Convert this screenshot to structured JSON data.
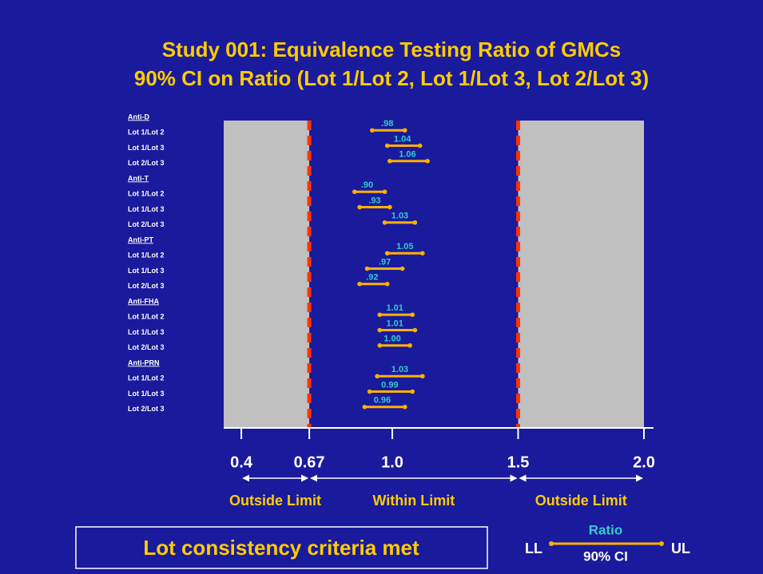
{
  "chart_data": {
    "type": "forest",
    "title": [
      "Study 001: Equivalence Testing Ratio of GMCs",
      "90% CI on Ratio (Lot 1/Lot 2, Lot 1/Lot 3, Lot 2/Lot 3)"
    ],
    "xlim": [
      0.33,
      2.0
    ],
    "xticks": [
      0.4,
      0.67,
      {
        "value": 1,
        "label": "1.0"
      },
      1.5,
      {
        "value": 2,
        "label": "2.0"
      }
    ],
    "limits": [
      0.67,
      1.5
    ],
    "regions": [
      "Outside Limit",
      "Within Limit",
      "Outside Limit"
    ],
    "bar_color": "#ffb000",
    "limit_color": "#ff3300",
    "shade_color": "#c0c0c0",
    "groups": [
      {
        "name": "Anti-D",
        "rows": [
          {
            "label": "Lot 1/Lot 2",
            "value": 0.98,
            "value_label": ".98",
            "lower": 0.92,
            "upper": 1.05
          },
          {
            "label": "Lot 1/Lot 3",
            "value": 1.04,
            "value_label": "1.04",
            "lower": 0.98,
            "upper": 1.11
          },
          {
            "label": "Lot 2/Lot 3",
            "value": 1.06,
            "value_label": "1.06",
            "lower": 0.99,
            "upper": 1.14
          }
        ]
      },
      {
        "name": "Anti-T",
        "rows": [
          {
            "label": "Lot 1/Lot 2",
            "value": 0.9,
            "value_label": ".90",
            "lower": 0.85,
            "upper": 0.97
          },
          {
            "label": "Lot 1/Lot 3",
            "value": 0.93,
            "value_label": ".93",
            "lower": 0.87,
            "upper": 0.99
          },
          {
            "label": "Lot 2/Lot 3",
            "value": 1.03,
            "value_label": "1.03",
            "lower": 0.97,
            "upper": 1.09
          }
        ]
      },
      {
        "name": "Anti-PT",
        "rows": [
          {
            "label": "Lot 1/Lot 2",
            "value": 1.05,
            "value_label": "1.05",
            "lower": 0.98,
            "upper": 1.12
          },
          {
            "label": "Lot 1/Lot 3",
            "value": 0.97,
            "value_label": ".97",
            "lower": 0.9,
            "upper": 1.04
          },
          {
            "label": "Lot 2/Lot 3",
            "value": 0.92,
            "value_label": ".92",
            "lower": 0.87,
            "upper": 0.98
          }
        ]
      },
      {
        "name": "Anti-FHA",
        "rows": [
          {
            "label": "Lot 1/Lot 2",
            "value": 1.01,
            "value_label": "1.01",
            "lower": 0.95,
            "upper": 1.08
          },
          {
            "label": "Lot 1/Lot 3",
            "value": 1.01,
            "value_label": "1.01",
            "lower": 0.95,
            "upper": 1.09
          },
          {
            "label": "Lot 2/Lot 3",
            "value": 1.0,
            "value_label": "1.00",
            "lower": 0.95,
            "upper": 1.07
          }
        ]
      },
      {
        "name": "Anti-PRN",
        "rows": [
          {
            "label": "Lot 1/Lot 2",
            "value": 1.03,
            "value_label": "1.03",
            "lower": 0.94,
            "upper": 1.12
          },
          {
            "label": "Lot 1/Lot 3",
            "value": 0.99,
            "value_label": "0.99",
            "lower": 0.91,
            "upper": 1.08
          },
          {
            "label": "Lot 2/Lot 3",
            "value": 0.96,
            "value_label": "0.96",
            "lower": 0.89,
            "upper": 1.05
          }
        ]
      }
    ],
    "conclusion": "Lot consistency criteria met",
    "legend": {
      "left": "LL",
      "top": "Ratio",
      "bottom": "90% CI",
      "right": "UL"
    }
  }
}
